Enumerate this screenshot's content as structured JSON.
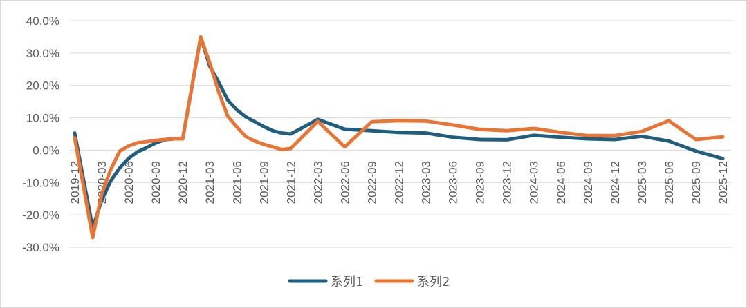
{
  "chart_data": {
    "type": "line",
    "title": "",
    "xlabel": "",
    "ylabel": "",
    "ylim": [
      -30,
      40
    ],
    "y_ticks": [
      "40.0%",
      "30.0%",
      "20.0%",
      "10.0%",
      "0.0%",
      "-10.0%",
      "-20.0%",
      "-30.0%"
    ],
    "y_tick_values": [
      40,
      30,
      20,
      10,
      0,
      -10,
      -20,
      -30
    ],
    "y_unit": "%",
    "grid": "horizontal",
    "legend_position": "bottom",
    "x_tick_labels": [
      "2019-12",
      "2020-03",
      "2020-06",
      "2020-09",
      "2020-12",
      "2021-03",
      "2021-06",
      "2021-09",
      "2021-12",
      "2022-03",
      "2022-06",
      "2022-09",
      "2022-12",
      "2023-03",
      "2023-06",
      "2023-09",
      "2023-12",
      "2024-03",
      "2024-06",
      "2024-09",
      "2024-12",
      "2025-03",
      "2025-06",
      "2025-09",
      "2025-12"
    ],
    "x": [
      "2019-12",
      "2020-02",
      "2020-03",
      "2020-04",
      "2020-05",
      "2020-06",
      "2020-07",
      "2020-08",
      "2020-09",
      "2020-10",
      "2020-11",
      "2020-12",
      "2021-02",
      "2021-03",
      "2021-04",
      "2021-05",
      "2021-06",
      "2021-07",
      "2021-08",
      "2021-09",
      "2021-10",
      "2021-11",
      "2021-12",
      "2022-03",
      "2022-06",
      "2022-09",
      "2022-12",
      "2023-03",
      "2023-06",
      "2023-09",
      "2023-12",
      "2024-03",
      "2024-06",
      "2024-09",
      "2024-12",
      "2025-03",
      "2025-06",
      "2025-09",
      "2025-12"
    ],
    "series": [
      {
        "name": "系列1",
        "color": "#1f5e7f",
        "values": [
          5.3,
          -24.0,
          -15.5,
          -9.5,
          -5.5,
          -2.5,
          -0.5,
          0.8,
          2.2,
          3.2,
          3.5,
          3.5,
          35.0,
          26.0,
          21.0,
          15.5,
          12.5,
          10.3,
          8.8,
          7.3,
          6.0,
          5.3,
          5.0,
          9.5,
          6.5,
          6.0,
          5.5,
          5.3,
          4.0,
          3.3,
          3.2,
          4.6,
          4.0,
          3.5,
          3.3,
          4.3,
          2.8,
          -0.3,
          -2.6
        ]
      },
      {
        "name": "系列2",
        "color": "#e97434",
        "values": [
          3.8,
          -27.0,
          -13.5,
          -6.0,
          -0.3,
          1.3,
          2.3,
          2.6,
          3.0,
          3.3,
          3.5,
          3.5,
          35.0,
          27.0,
          18.0,
          10.5,
          7.2,
          4.2,
          2.8,
          1.8,
          1.0,
          0.2,
          0.5,
          8.9,
          1.0,
          8.8,
          9.1,
          9.0,
          7.8,
          6.4,
          6.0,
          6.7,
          5.5,
          4.5,
          4.5,
          5.8,
          9.1,
          3.3,
          4.1
        ]
      }
    ]
  }
}
